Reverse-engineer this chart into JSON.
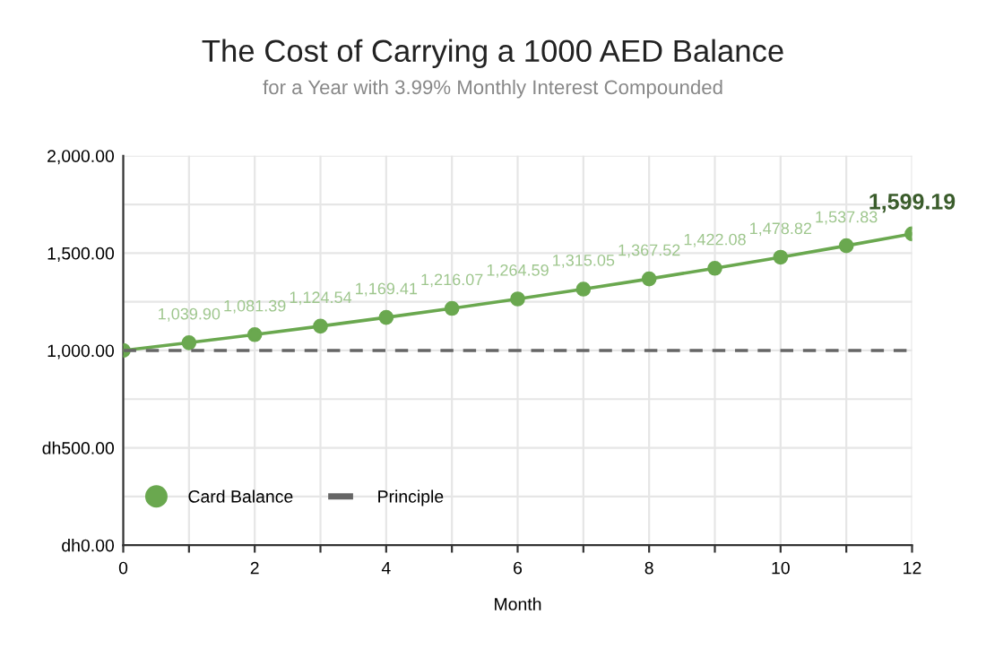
{
  "chart_data": {
    "type": "line",
    "title": "The Cost of Carrying a 1000 AED Balance",
    "subtitle": "for a Year with 3.99% Monthly Interest Compounded",
    "xlabel": "Month",
    "x": [
      0,
      1,
      2,
      3,
      4,
      5,
      6,
      7,
      8,
      9,
      10,
      11,
      12
    ],
    "xlim": [
      0,
      12
    ],
    "xticks": [
      0,
      {
        "value": 1,
        "label": null
      },
      2,
      {
        "value": 3,
        "label": null
      },
      4,
      {
        "value": 5,
        "label": null
      },
      6,
      {
        "value": 7,
        "label": null
      },
      8,
      {
        "value": 9,
        "label": null
      },
      10,
      {
        "value": 11,
        "label": null
      },
      12
    ],
    "ylim": [
      0,
      2000
    ],
    "yticks": [
      {
        "value": 0,
        "label": "dh0.00"
      },
      {
        "value": 250,
        "label": null
      },
      {
        "value": 500,
        "label": "dh500.00"
      },
      {
        "value": 750,
        "label": null
      },
      {
        "value": 1000,
        "label": "1,000.00"
      },
      {
        "value": 1250,
        "label": null
      },
      {
        "value": 1500,
        "label": "1,500.00"
      },
      {
        "value": 1750,
        "label": null
      },
      {
        "value": 2000,
        "label": "2,000.00"
      }
    ],
    "series": [
      {
        "name": "Card Balance",
        "color": "#6aa84f",
        "marker": "circle",
        "line_style": "solid",
        "values": [
          1000,
          1039.9,
          1081.39,
          1124.54,
          1169.41,
          1216.07,
          1264.59,
          1315.05,
          1367.52,
          1422.08,
          1478.82,
          1537.83,
          1599.19
        ],
        "value_labels": [
          null,
          "1,039.90",
          "1,081.39",
          "1,124.54",
          "1,169.41",
          "1,216.07",
          "1,264.59",
          "1,315.05",
          "1,367.52",
          "1,422.08",
          "1,478.82",
          "1,537.83",
          "1,599.19"
        ]
      },
      {
        "name": "Principle",
        "color": "#666666",
        "marker": "none",
        "line_style": "dashed",
        "values": [
          1000,
          1000,
          1000,
          1000,
          1000,
          1000,
          1000,
          1000,
          1000,
          1000,
          1000,
          1000,
          1000
        ]
      }
    ],
    "grid": true,
    "legend": "bottom left"
  }
}
